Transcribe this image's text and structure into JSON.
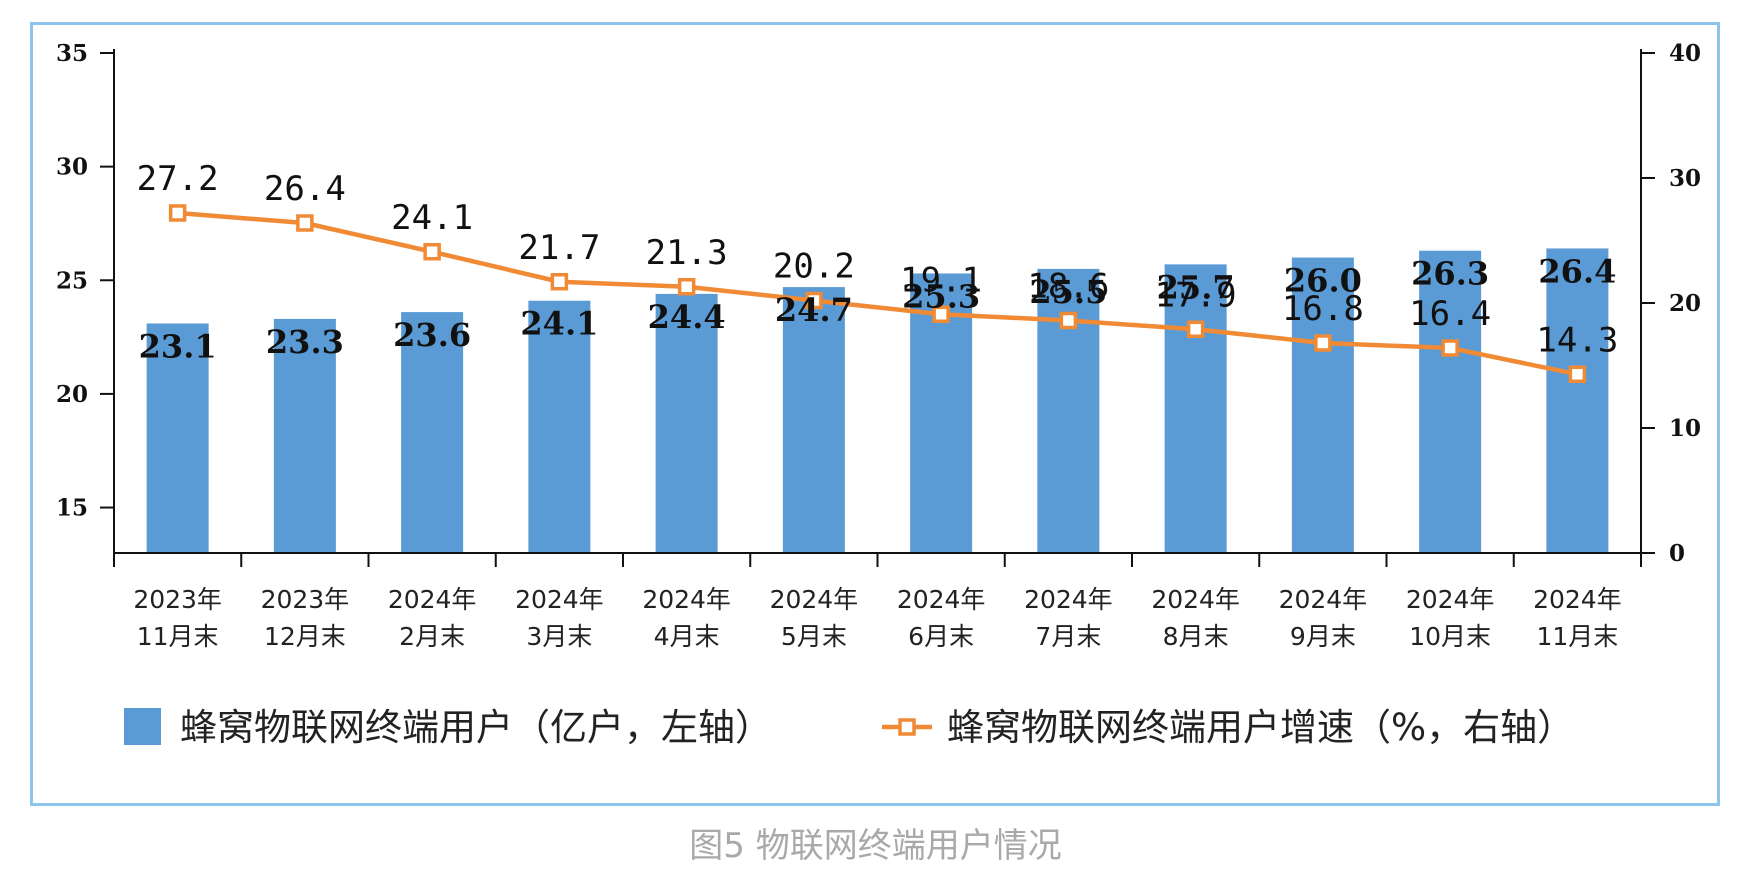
{
  "chart_data": {
    "type": "bar+line",
    "title": "",
    "categories": [
      [
        "2023年",
        "11月末"
      ],
      [
        "2023年",
        "12月末"
      ],
      [
        "2024年",
        "2月末"
      ],
      [
        "2024年",
        "3月末"
      ],
      [
        "2024年",
        "4月末"
      ],
      [
        "2024年",
        "5月末"
      ],
      [
        "2024年",
        "6月末"
      ],
      [
        "2024年",
        "7月末"
      ],
      [
        "2024年",
        "8月末"
      ],
      [
        "2024年",
        "9月末"
      ],
      [
        "2024年",
        "10月末"
      ],
      [
        "2024年",
        "11月末"
      ]
    ],
    "series": [
      {
        "name": "蜂窝物联网终端用户（亿户，左轴）",
        "type": "bar",
        "axis": "left",
        "values": [
          23.1,
          23.3,
          23.6,
          24.1,
          24.4,
          24.7,
          25.3,
          25.5,
          25.7,
          26.0,
          26.3,
          26.4
        ],
        "labels": [
          "23.1",
          "23.3",
          "23.6",
          "24.1",
          "24.4",
          "24.7",
          "25.3",
          "25.5",
          "25.7",
          "26.0",
          "26.3",
          "26.4"
        ],
        "color": "#5b9bd5"
      },
      {
        "name": "蜂窝物联网终端用户增速（%，右轴）",
        "type": "line",
        "axis": "right",
        "values": [
          27.2,
          26.4,
          24.1,
          21.7,
          21.3,
          20.2,
          19.1,
          18.6,
          17.9,
          16.8,
          16.4,
          14.3
        ],
        "labels": [
          "27.2",
          "26.4",
          "24.1",
          "21.7",
          "21.3",
          "20.2",
          "19.1",
          "18.6",
          "17.9",
          "16.8",
          "16.4",
          "14.3"
        ],
        "color": "#f08a34"
      }
    ],
    "y_left": {
      "min": 13,
      "max": 35,
      "ticks": [
        "15",
        "20",
        "25",
        "30",
        "35"
      ]
    },
    "y_right": {
      "min": 0,
      "max": 40,
      "ticks": [
        "0",
        "10",
        "20",
        "30",
        "40"
      ]
    },
    "grid": false,
    "legend": "bottom"
  },
  "caption": "图5 物联网终端用户情况"
}
